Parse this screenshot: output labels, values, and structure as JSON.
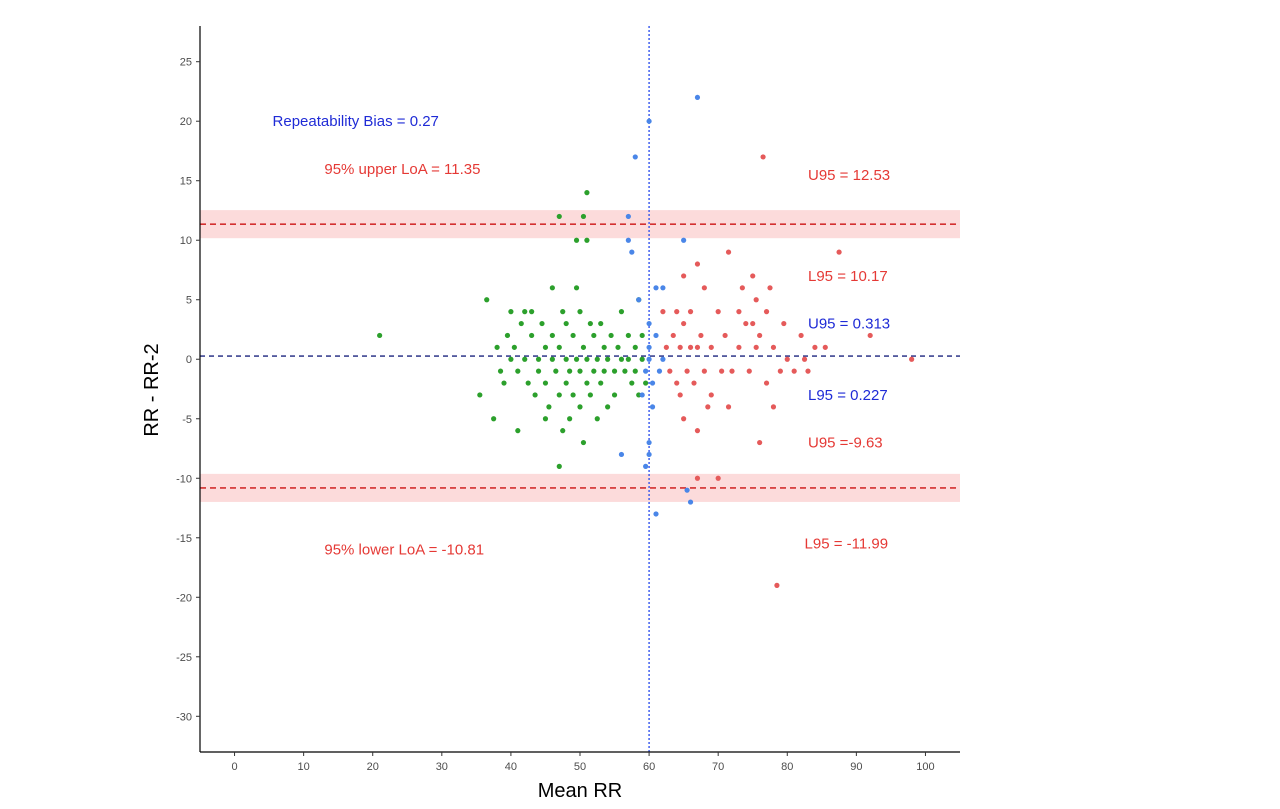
{
  "chart_data": {
    "type": "scatter",
    "title": "",
    "xlabel": "Mean RR",
    "ylabel": "RR - RR-2",
    "xlim": [
      -5,
      105
    ],
    "ylim": [
      -33,
      28
    ],
    "x_ticks": [
      0,
      10,
      20,
      30,
      40,
      50,
      60,
      70,
      80,
      90,
      100
    ],
    "y_ticks": [
      25,
      20,
      15,
      10,
      5,
      0,
      -5,
      -10,
      -15,
      -20,
      -25,
      -30
    ],
    "grid": false,
    "legend": "none",
    "colors": {
      "green": "#2ca02c",
      "blue": "#4a86e8",
      "red": "#e55a5a",
      "bias_line": "#1a237e",
      "loa_line": "#d32f2f",
      "band": "#fbd5d5"
    },
    "reference_lines": {
      "bias": 0.27,
      "upper_loa": 11.35,
      "lower_loa": -10.81,
      "upper_band": [
        10.17,
        12.53
      ],
      "lower_band": [
        -11.99,
        -9.63
      ],
      "vertical_x": 60
    },
    "annotations": [
      {
        "text": "Repeatability Bias = 0.27",
        "x": 5.5,
        "y": 20,
        "color": "blue"
      },
      {
        "text": "95% upper LoA = 11.35",
        "x": 13,
        "y": 16,
        "color": "red"
      },
      {
        "text": "U95 = 12.53",
        "x": 83,
        "y": 15.5,
        "color": "red"
      },
      {
        "text": "L95 = 10.17",
        "x": 83,
        "y": 7,
        "color": "red"
      },
      {
        "text": "U95 = 0.313",
        "x": 83,
        "y": 3,
        "color": "blue"
      },
      {
        "text": "L95 = 0.227",
        "x": 83,
        "y": -3,
        "color": "blue"
      },
      {
        "text": "U95 =-9.63",
        "x": 83,
        "y": -7,
        "color": "red"
      },
      {
        "text": "L95 = -11.99",
        "x": 82.5,
        "y": -15.5,
        "color": "red"
      },
      {
        "text": "95% lower LoA = -10.81",
        "x": 13,
        "y": -16,
        "color": "red"
      }
    ],
    "series": [
      {
        "color": "green",
        "points": [
          [
            21,
            2
          ],
          [
            35.5,
            -3
          ],
          [
            36.5,
            5
          ],
          [
            37.5,
            -5
          ],
          [
            38,
            1
          ],
          [
            38.5,
            -1
          ],
          [
            39,
            -2
          ],
          [
            39.5,
            2
          ],
          [
            40,
            4
          ],
          [
            40,
            0
          ],
          [
            40.5,
            1
          ],
          [
            41,
            -6
          ],
          [
            41,
            -1
          ],
          [
            41.5,
            3
          ],
          [
            42,
            4
          ],
          [
            42,
            0
          ],
          [
            42.5,
            -2
          ],
          [
            43,
            2
          ],
          [
            43,
            4
          ],
          [
            43.5,
            -3
          ],
          [
            44,
            0
          ],
          [
            44,
            -1
          ],
          [
            44.5,
            3
          ],
          [
            45,
            1
          ],
          [
            45,
            -5
          ],
          [
            45,
            -2
          ],
          [
            45.5,
            -4
          ],
          [
            46,
            0
          ],
          [
            46,
            6
          ],
          [
            46,
            2
          ],
          [
            46.5,
            -1
          ],
          [
            47,
            12
          ],
          [
            47,
            -3
          ],
          [
            47,
            1
          ],
          [
            47,
            -9
          ],
          [
            47.5,
            -6
          ],
          [
            47.5,
            4
          ],
          [
            48,
            0
          ],
          [
            48,
            -2
          ],
          [
            48,
            3
          ],
          [
            48.5,
            -1
          ],
          [
            48.5,
            -5
          ],
          [
            49,
            2
          ],
          [
            49,
            -3
          ],
          [
            49.5,
            10
          ],
          [
            49.5,
            0
          ],
          [
            49.5,
            6
          ],
          [
            50,
            -1
          ],
          [
            50,
            4
          ],
          [
            50,
            -4
          ],
          [
            50.5,
            12
          ],
          [
            50.5,
            1
          ],
          [
            50.5,
            -7
          ],
          [
            51,
            14
          ],
          [
            51,
            10
          ],
          [
            51,
            -2
          ],
          [
            51,
            0
          ],
          [
            51.5,
            3
          ],
          [
            51.5,
            -3
          ],
          [
            52,
            -1
          ],
          [
            52,
            2
          ],
          [
            52.5,
            0
          ],
          [
            52.5,
            -5
          ],
          [
            53,
            3
          ],
          [
            53,
            -2
          ],
          [
            53.5,
            1
          ],
          [
            53.5,
            -1
          ],
          [
            54,
            0
          ],
          [
            54,
            -4
          ],
          [
            54.5,
            2
          ],
          [
            55,
            -1
          ],
          [
            55,
            -3
          ],
          [
            55.5,
            1
          ],
          [
            56,
            0
          ],
          [
            56,
            4
          ],
          [
            56.5,
            -1
          ],
          [
            57,
            0
          ],
          [
            57,
            2
          ],
          [
            57.5,
            -2
          ],
          [
            58,
            1
          ],
          [
            58,
            -1
          ],
          [
            58.5,
            5
          ],
          [
            58.5,
            -3
          ],
          [
            59,
            0
          ],
          [
            59,
            2
          ],
          [
            59.5,
            -2
          ]
        ]
      },
      {
        "color": "blue",
        "points": [
          [
            56,
            -8
          ],
          [
            57,
            12
          ],
          [
            57,
            10
          ],
          [
            57.5,
            9
          ],
          [
            58,
            17
          ],
          [
            58.5,
            5
          ],
          [
            59,
            -3
          ],
          [
            59.5,
            -9
          ],
          [
            59.5,
            -1
          ],
          [
            60,
            20
          ],
          [
            60,
            -8
          ],
          [
            60,
            -7
          ],
          [
            60,
            0
          ],
          [
            60,
            3
          ],
          [
            60,
            1
          ],
          [
            60.5,
            -2
          ],
          [
            61,
            -13
          ],
          [
            61,
            6
          ],
          [
            61,
            2
          ],
          [
            61.5,
            -1
          ],
          [
            62,
            6
          ],
          [
            62,
            0
          ],
          [
            65,
            10
          ],
          [
            65.5,
            -11
          ],
          [
            66,
            -12
          ],
          [
            67,
            22
          ],
          [
            60.5,
            -4
          ]
        ]
      },
      {
        "color": "red",
        "points": [
          [
            62,
            4
          ],
          [
            62.5,
            1
          ],
          [
            63,
            -1
          ],
          [
            63.5,
            2
          ],
          [
            64,
            4
          ],
          [
            64,
            -2
          ],
          [
            64.5,
            1
          ],
          [
            64.5,
            -3
          ],
          [
            65,
            7
          ],
          [
            65,
            3
          ],
          [
            65,
            -5
          ],
          [
            65.5,
            -1
          ],
          [
            66,
            1
          ],
          [
            66,
            4
          ],
          [
            66.5,
            -2
          ],
          [
            67,
            8
          ],
          [
            67,
            -10
          ],
          [
            67,
            1
          ],
          [
            67,
            -6
          ],
          [
            67.5,
            2
          ],
          [
            68,
            6
          ],
          [
            68,
            -1
          ],
          [
            68.5,
            -4
          ],
          [
            69,
            1
          ],
          [
            69,
            -3
          ],
          [
            70,
            -10
          ],
          [
            70,
            4
          ],
          [
            70.5,
            -1
          ],
          [
            71,
            2
          ],
          [
            71.5,
            9
          ],
          [
            71.5,
            -4
          ],
          [
            72,
            -1
          ],
          [
            73,
            4
          ],
          [
            73,
            1
          ],
          [
            73.5,
            6
          ],
          [
            74,
            3
          ],
          [
            74.5,
            -1
          ],
          [
            75,
            7
          ],
          [
            75,
            3
          ],
          [
            75.5,
            1
          ],
          [
            75.5,
            5
          ],
          [
            76,
            -7
          ],
          [
            76,
            2
          ],
          [
            76.5,
            17
          ],
          [
            77,
            -2
          ],
          [
            77,
            4
          ],
          [
            77.5,
            6
          ],
          [
            78,
            -4
          ],
          [
            78,
            1
          ],
          [
            78.5,
            -19
          ],
          [
            79,
            -1
          ],
          [
            79.5,
            3
          ],
          [
            80,
            0
          ],
          [
            81,
            -1
          ],
          [
            82,
            2
          ],
          [
            82.5,
            0
          ],
          [
            83,
            -1
          ],
          [
            84,
            1
          ],
          [
            85.5,
            1
          ],
          [
            87.5,
            9
          ],
          [
            92,
            2
          ],
          [
            98,
            0
          ]
        ]
      }
    ]
  }
}
